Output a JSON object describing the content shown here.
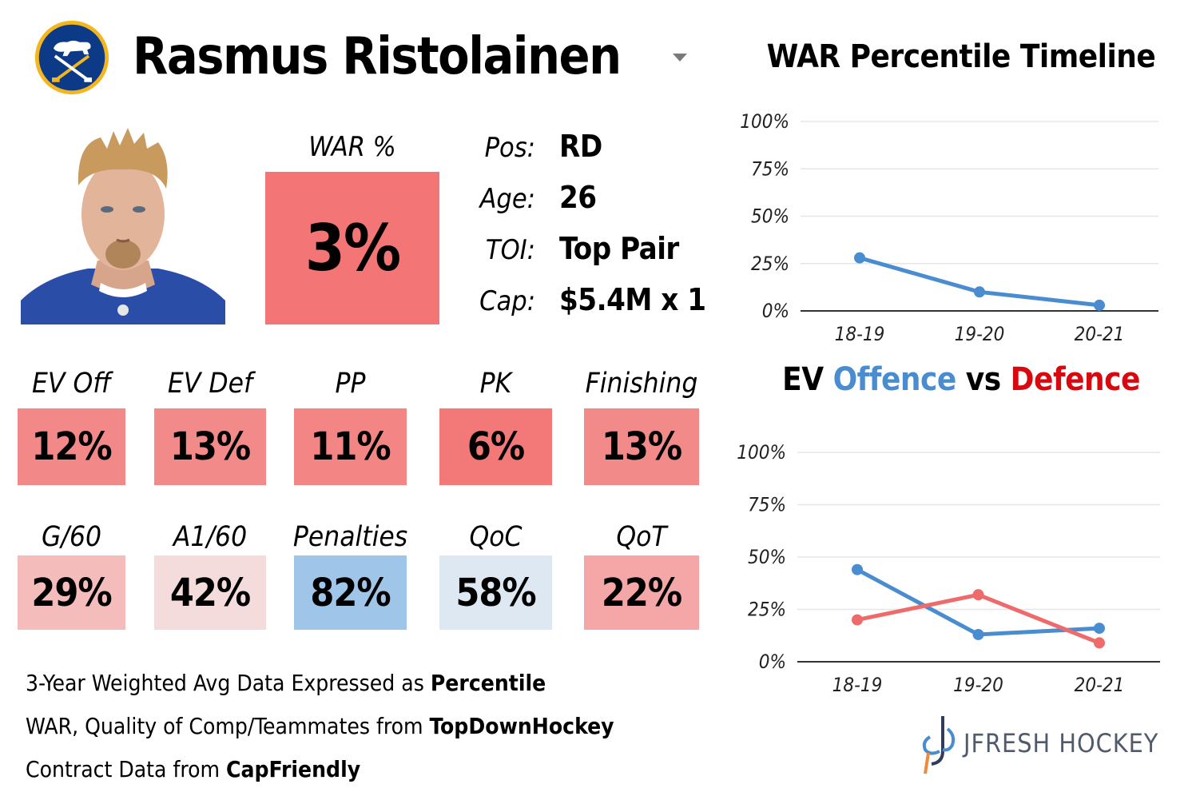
{
  "header": {
    "player_name": "Rasmus Ristolainen",
    "team_logo_icon": "sabres-logo-icon"
  },
  "war": {
    "label": "WAR %",
    "value": "3%",
    "color": "#f37575"
  },
  "info": [
    {
      "key": "Pos:",
      "value": "RD"
    },
    {
      "key": "Age:",
      "value": "26"
    },
    {
      "key": "TOI:",
      "value": "Top Pair"
    },
    {
      "key": "Cap:",
      "value": "$5.4M x 1"
    }
  ],
  "stats_row1": [
    {
      "label": "EV Off",
      "value": "12%",
      "color": "#f38888"
    },
    {
      "label": "EV Def",
      "value": "13%",
      "color": "#f38a8a"
    },
    {
      "label": "PP",
      "value": "11%",
      "color": "#f38585"
    },
    {
      "label": "PK",
      "value": "6%",
      "color": "#f37878"
    },
    {
      "label": "Finishing",
      "value": "13%",
      "color": "#f38a8a"
    }
  ],
  "stats_row2": [
    {
      "label": "G/60",
      "value": "29%",
      "color": "#f5bcbc"
    },
    {
      "label": "A1/60",
      "value": "42%",
      "color": "#f5dcdc"
    },
    {
      "label": "Penalties",
      "value": "82%",
      "color": "#9fc5e8"
    },
    {
      "label": "QoC",
      "value": "58%",
      "color": "#dde8f2"
    },
    {
      "label": "QoT",
      "value": "22%",
      "color": "#f5a6a6"
    }
  ],
  "notes": [
    {
      "text": "3-Year Weighted Avg Data Expressed as ",
      "bold": "Percentile"
    },
    {
      "text": "WAR, Quality of Comp/Teammates from ",
      "bold": "TopDownHockey"
    },
    {
      "text": "Contract Data from ",
      "bold": "CapFriendly"
    }
  ],
  "brand": {
    "text": "JFRESH HOCKEY",
    "icon": "jfresh-logo-icon"
  },
  "chart_data": [
    {
      "type": "line",
      "title": "WAR Percentile Timeline",
      "x": [
        "18-19",
        "19-20",
        "20-21"
      ],
      "ylim": [
        0,
        100
      ],
      "yticks": [
        "0%",
        "25%",
        "50%",
        "75%",
        "100%"
      ],
      "grid": true,
      "series": [
        {
          "values": [
            28,
            10,
            3
          ],
          "color": "#4a8cd0"
        }
      ]
    },
    {
      "type": "line",
      "title_parts": [
        {
          "text": "EV ",
          "color": "#000000"
        },
        {
          "text": "Offence",
          "color": "#4a8cd0"
        },
        {
          "text": " vs ",
          "color": "#000000"
        },
        {
          "text": "Defence",
          "color": "#d9080f"
        }
      ],
      "x": [
        "18-19",
        "19-20",
        "20-21"
      ],
      "ylim": [
        0,
        100
      ],
      "yticks": [
        "0%",
        "25%",
        "50%",
        "75%",
        "100%"
      ],
      "grid": true,
      "series": [
        {
          "values": [
            44,
            13,
            16
          ],
          "color": "#4a8cd0"
        },
        {
          "values": [
            20,
            32,
            9
          ],
          "color": "#ef6a6a"
        }
      ]
    }
  ]
}
